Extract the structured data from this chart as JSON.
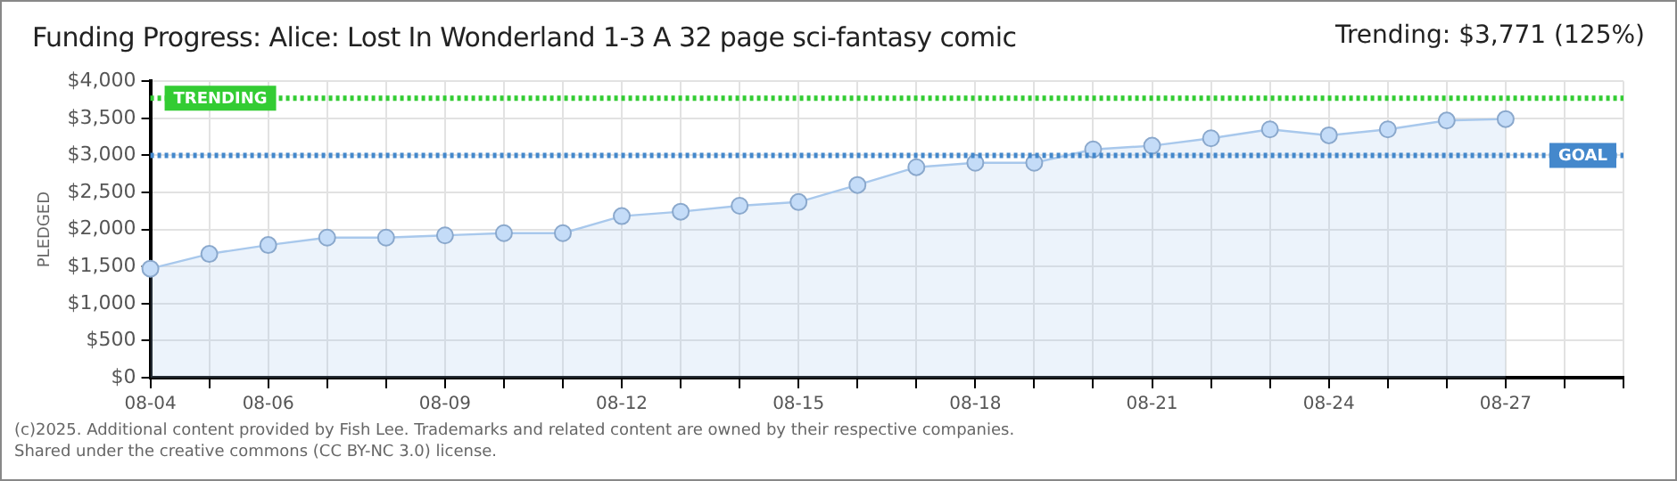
{
  "chart_data": {
    "type": "area",
    "title": "Funding Progress: Alice: Lost In Wonderland 1-3 A 32 page sci-fantasy comic",
    "ylabel": "PLEDGED",
    "categories": [
      "08-04",
      null,
      "08-06",
      null,
      null,
      "08-09",
      null,
      null,
      "08-12",
      null,
      null,
      "08-15",
      null,
      null,
      "08-18",
      null,
      null,
      "08-21",
      null,
      null,
      "08-24",
      null,
      null,
      "08-27",
      null,
      null
    ],
    "series": [
      {
        "color": "#a8c8ec",
        "values": [
          1470,
          1670,
          1790,
          1890,
          1890,
          1920,
          1950,
          1950,
          2180,
          2240,
          2320,
          2370,
          2600,
          2840,
          2900,
          2900,
          3080,
          3130,
          3230,
          3350,
          3270,
          3350,
          3470,
          3490,
          null,
          null
        ]
      }
    ],
    "ylim": [
      0,
      4000
    ],
    "yticks": [
      {
        "value": 0,
        "label": "$0"
      },
      {
        "value": 500,
        "label": "$500"
      },
      {
        "value": 1000,
        "label": "$1,000"
      },
      {
        "value": 1500,
        "label": "$1,500"
      },
      {
        "value": 2000,
        "label": "$2,000"
      },
      {
        "value": 2500,
        "label": "$2,500"
      },
      {
        "value": 3000,
        "label": "$3,000"
      },
      {
        "value": 3500,
        "label": "$3,500"
      },
      {
        "value": 4000,
        "label": "$4,000"
      }
    ],
    "ref_lines": [
      {
        "axis": "y",
        "value": 3771,
        "label": "TRENDING",
        "color": "#33cc33",
        "line_style": "dotted"
      },
      {
        "axis": "y",
        "value": 3000,
        "label": "GOAL",
        "color": "#4488cc",
        "line_style": "dotted"
      }
    ],
    "annotations": [
      "Trending: $3,771 (125%)",
      "(c)2025. Additional content provided by Fish Lee. Trademarks and related content are owned by their respective companies.",
      "Shared under the creative commons (CC BY-NC 3.0) license."
    ],
    "grid": true,
    "legend": false,
    "marker": "circle",
    "line_style": "solid"
  }
}
